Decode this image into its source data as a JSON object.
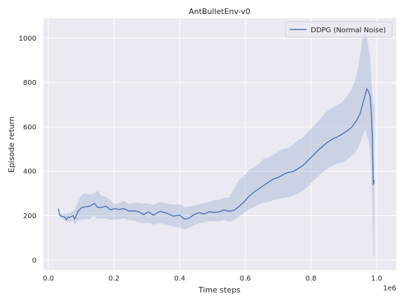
{
  "chart_data": {
    "type": "line",
    "title": "AntBulletEnv-v0",
    "xlabel": "Time steps",
    "ylabel": "Episode return",
    "x_offset_label": "1e6",
    "x_scale": 1000000,
    "xlim": [
      -15000,
      1060000
    ],
    "ylim": [
      -45,
      1090
    ],
    "xticks": [
      0,
      200000,
      400000,
      600000,
      800000,
      1000000
    ],
    "xtick_labels": [
      "0.0",
      "0.2",
      "0.4",
      "0.6",
      "0.8",
      "1.0"
    ],
    "yticks": [
      0,
      200,
      400,
      600,
      800,
      1000
    ],
    "ytick_labels": [
      "0",
      "200",
      "400",
      "600",
      "800",
      "1000"
    ],
    "grid": true,
    "legend_position": "top-right",
    "series": [
      {
        "name": "DDPG (Normal Noise)",
        "color": "#4c72b0",
        "band_color": "#4c72b0",
        "x": [
          30000,
          35000,
          50000,
          55000,
          60000,
          65000,
          75000,
          80000,
          90000,
          100000,
          110000,
          125000,
          140000,
          150000,
          160000,
          175000,
          190000,
          200000,
          215000,
          230000,
          245000,
          260000,
          275000,
          290000,
          305000,
          320000,
          340000,
          360000,
          380000,
          400000,
          415000,
          430000,
          445000,
          460000,
          475000,
          490000,
          505000,
          520000,
          535000,
          550000,
          565000,
          580000,
          595000,
          610000,
          625000,
          640000,
          655000,
          670000,
          685000,
          700000,
          715000,
          730000,
          745000,
          760000,
          775000,
          790000,
          805000,
          820000,
          835000,
          850000,
          865000,
          880000,
          895000,
          910000,
          925000,
          940000,
          950000,
          957000,
          965000,
          970000,
          975000,
          980000,
          984000,
          987000,
          990000,
          993000
        ],
        "y": [
          232,
          200,
          193,
          182,
          195,
          192,
          200,
          185,
          218,
          235,
          240,
          242,
          255,
          238,
          237,
          243,
          226,
          232,
          228,
          232,
          221,
          222,
          218,
          205,
          217,
          202,
          220,
          212,
          198,
          202,
          184,
          190,
          206,
          214,
          207,
          218,
          215,
          217,
          226,
          220,
          224,
          240,
          260,
          285,
          305,
          320,
          335,
          350,
          365,
          372,
          385,
          395,
          398,
          412,
          425,
          448,
          470,
          492,
          512,
          530,
          545,
          555,
          568,
          582,
          600,
          632,
          660,
          700,
          742,
          772,
          760,
          740,
          660,
          560,
          340,
          360
        ],
        "upper": [
          232,
          208,
          210,
          205,
          215,
          212,
          220,
          228,
          262,
          290,
          300,
          295,
          300,
          312,
          292,
          285,
          268,
          252,
          255,
          268,
          252,
          258,
          258,
          255,
          255,
          248,
          262,
          255,
          250,
          252,
          238,
          242,
          246,
          250,
          258,
          262,
          270,
          272,
          280,
          282,
          320,
          360,
          376,
          405,
          418,
          432,
          455,
          462,
          475,
          488,
          500,
          505,
          520,
          540,
          552,
          576,
          600,
          622,
          650,
          672,
          688,
          698,
          712,
          738,
          772,
          840,
          920,
          1000,
          1060,
          1020,
          960,
          915,
          820,
          760,
          700,
          705
        ],
        "lower": [
          232,
          196,
          178,
          170,
          178,
          170,
          178,
          160,
          178,
          182,
          184,
          185,
          200,
          185,
          188,
          188,
          180,
          182,
          184,
          188,
          180,
          178,
          172,
          165,
          170,
          160,
          166,
          160,
          150,
          146,
          138,
          145,
          158,
          166,
          170,
          176,
          175,
          174,
          180,
          174,
          178,
          196,
          210,
          228,
          238,
          250,
          258,
          262,
          270,
          275,
          280,
          282,
          290,
          300,
          312,
          330,
          355,
          375,
          395,
          412,
          425,
          435,
          440,
          452,
          470,
          495,
          530,
          555,
          590,
          560,
          540,
          500,
          380,
          260,
          30,
          5
        ]
      }
    ]
  }
}
